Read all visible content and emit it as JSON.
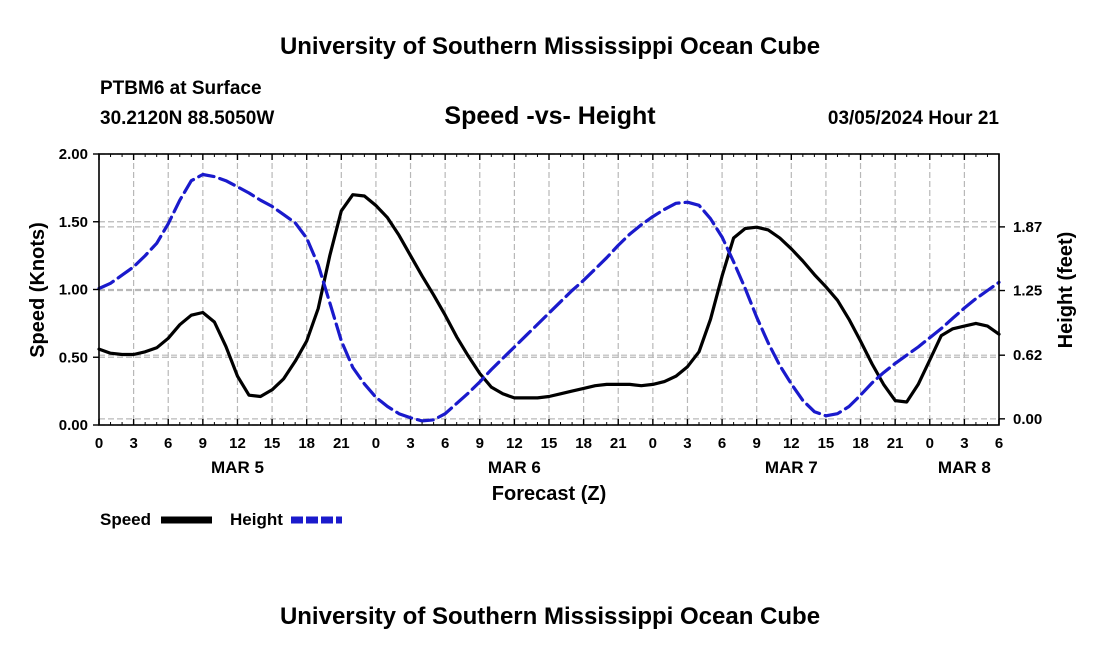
{
  "header": {
    "title": "University of Southern Mississippi Ocean Cube",
    "station": "PTBM6 at Surface",
    "coords": "30.2120N  88.5050W",
    "chart_title": "Speed -vs- Height",
    "datetime": "03/05/2024 Hour 21"
  },
  "footer": {
    "title": "University of Southern Mississippi Ocean Cube"
  },
  "chart_data": {
    "type": "line",
    "title": "Speed -vs- Height",
    "xlabel": "Forecast (Z)",
    "ylabel": "Speed (Knots)",
    "y2label": "Height (feet)",
    "x_unit": "hours since MAR 5 00Z",
    "xlim": [
      0,
      78
    ],
    "ylim": [
      0,
      2.0
    ],
    "y2lim": [
      -0.06,
      2.58
    ],
    "x_tick_values": [
      0,
      3,
      6,
      9,
      12,
      15,
      18,
      21,
      24,
      27,
      30,
      33,
      36,
      39,
      42,
      45,
      48,
      51,
      54,
      57,
      60,
      63,
      66,
      69,
      72,
      75,
      78
    ],
    "x_tick_labels": [
      "0",
      "3",
      "6",
      "9",
      "12",
      "15",
      "18",
      "21",
      "0",
      "3",
      "6",
      "9",
      "12",
      "15",
      "18",
      "21",
      "0",
      "3",
      "6",
      "9",
      "12",
      "15",
      "18",
      "21",
      "0",
      "3",
      "6"
    ],
    "y_ticks": [
      0,
      0.5,
      1.0,
      1.5,
      2.0
    ],
    "y_tick_labels": [
      "0.00",
      "0.50",
      "1.00",
      "1.50",
      "2.00"
    ],
    "y2_ticks": [
      0,
      0.62,
      1.25,
      1.87
    ],
    "y2_tick_labels": [
      "0.00",
      "0.62",
      "1.25",
      "1.87"
    ],
    "day_labels": [
      {
        "x": 12,
        "text": "MAR 5"
      },
      {
        "x": 36,
        "text": "MAR 6"
      },
      {
        "x": 60,
        "text": "MAR 7"
      },
      {
        "x": 75,
        "text": "MAR 8"
      }
    ],
    "grid": true,
    "legend_position": "bottom-left",
    "series": [
      {
        "name": "Speed",
        "axis": "left",
        "color": "#000000",
        "dash": "solid",
        "x": [
          0,
          1,
          2,
          3,
          4,
          5,
          6,
          7,
          8,
          9,
          10,
          11,
          12,
          13,
          14,
          15,
          16,
          17,
          18,
          19,
          20,
          21,
          22,
          23,
          24,
          25,
          26,
          27,
          28,
          29,
          30,
          31,
          32,
          33,
          34,
          35,
          36,
          37,
          38,
          39,
          40,
          41,
          42,
          43,
          44,
          45,
          46,
          47,
          48,
          49,
          50,
          51,
          52,
          53,
          54,
          55,
          56,
          57,
          58,
          59,
          60,
          61,
          62,
          63,
          64,
          65,
          66,
          67,
          68,
          69,
          70,
          71,
          72,
          73,
          74,
          75,
          76,
          77,
          78
        ],
        "values": [
          0.56,
          0.53,
          0.52,
          0.52,
          0.54,
          0.57,
          0.64,
          0.74,
          0.81,
          0.83,
          0.76,
          0.58,
          0.36,
          0.22,
          0.21,
          0.26,
          0.34,
          0.47,
          0.62,
          0.86,
          1.25,
          1.58,
          1.7,
          1.69,
          1.62,
          1.53,
          1.4,
          1.25,
          1.1,
          0.96,
          0.81,
          0.65,
          0.51,
          0.38,
          0.28,
          0.23,
          0.2,
          0.2,
          0.2,
          0.21,
          0.23,
          0.25,
          0.27,
          0.29,
          0.3,
          0.3,
          0.3,
          0.29,
          0.3,
          0.32,
          0.36,
          0.43,
          0.54,
          0.78,
          1.1,
          1.38,
          1.45,
          1.46,
          1.44,
          1.38,
          1.3,
          1.21,
          1.11,
          1.02,
          0.92,
          0.78,
          0.62,
          0.45,
          0.3,
          0.18,
          0.17,
          0.3,
          0.48,
          0.66,
          0.71,
          0.73,
          0.75,
          0.73,
          0.67
        ]
      },
      {
        "name": "Height",
        "axis": "right",
        "color": "#1a1acc",
        "dash": "dashed",
        "x": [
          0,
          1,
          2,
          3,
          4,
          5,
          6,
          7,
          8,
          9,
          10,
          11,
          12,
          13,
          14,
          15,
          16,
          17,
          18,
          19,
          20,
          21,
          22,
          23,
          24,
          25,
          26,
          27,
          28,
          29,
          30,
          31,
          32,
          33,
          34,
          35,
          36,
          37,
          38,
          39,
          40,
          41,
          42,
          43,
          44,
          45,
          46,
          47,
          48,
          49,
          50,
          51,
          52,
          53,
          54,
          55,
          56,
          57,
          58,
          59,
          60,
          61,
          62,
          63,
          64,
          65,
          66,
          67,
          68,
          69,
          70,
          71,
          72,
          73,
          74,
          75,
          76,
          77,
          78
        ],
        "values": [
          1.27,
          1.32,
          1.4,
          1.48,
          1.59,
          1.71,
          1.9,
          2.13,
          2.32,
          2.38,
          2.36,
          2.32,
          2.26,
          2.2,
          2.13,
          2.07,
          1.99,
          1.91,
          1.76,
          1.5,
          1.13,
          0.76,
          0.5,
          0.34,
          0.21,
          0.12,
          0.05,
          0.01,
          -0.02,
          -0.01,
          0.05,
          0.15,
          0.25,
          0.36,
          0.48,
          0.59,
          0.7,
          0.81,
          0.92,
          1.03,
          1.14,
          1.25,
          1.35,
          1.46,
          1.57,
          1.69,
          1.8,
          1.89,
          1.97,
          2.04,
          2.1,
          2.11,
          2.08,
          1.95,
          1.77,
          1.53,
          1.27,
          0.99,
          0.74,
          0.52,
          0.34,
          0.18,
          0.07,
          0.03,
          0.05,
          0.12,
          0.23,
          0.35,
          0.45,
          0.54,
          0.62,
          0.7,
          0.79,
          0.88,
          0.98,
          1.08,
          1.17,
          1.25,
          1.33
        ]
      }
    ]
  }
}
